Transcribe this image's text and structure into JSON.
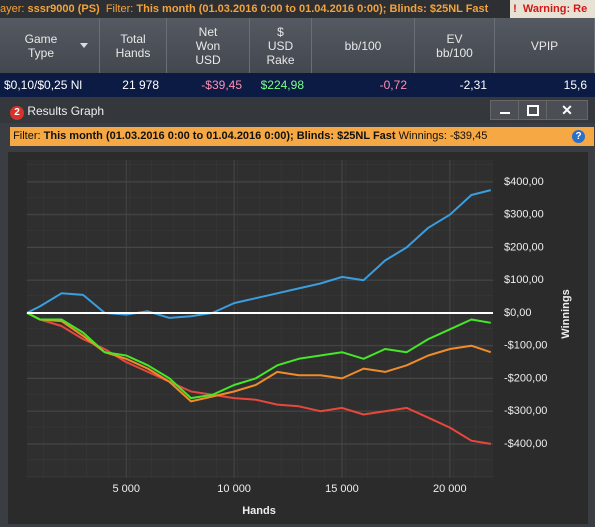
{
  "topbar": {
    "player_label": "ayer:",
    "player": "sssr9000 (PS)",
    "filter_label": "Filter:",
    "filter": "This month (01.03.2016 0:00 to 01.04.2016 0:00); Blinds: $25NL Fast",
    "warning_icon": "!",
    "warning": "Warning: Re"
  },
  "table": {
    "headers": [
      "Game Type",
      "Total Hands",
      "Net Won USD",
      "$ USD Rake",
      "bb/100",
      "EV bb/100",
      "VPIP"
    ],
    "rows": [
      [
        "$0,10/$0,25 Nl",
        "21 978",
        "-$39,45",
        "$224,98",
        "-0,72",
        "-2,31",
        "15,6"
      ]
    ]
  },
  "window": {
    "icon": "2",
    "title": "Results Graph",
    "filter_label": "Filter:",
    "filter": "This month (01.03.2016 0:00 to 01.04.2016 0:00); Blinds: $25NL Fast",
    "winnings_label": "Winnings:",
    "winnings": "-$39,45",
    "help": "?"
  },
  "chart_data": {
    "type": "line",
    "xlabel": "Hands",
    "ylabel": "Winnings",
    "x": [
      400,
      1000,
      2000,
      3000,
      4000,
      5000,
      6000,
      7000,
      8000,
      9000,
      10000,
      11000,
      12000,
      13000,
      14000,
      15000,
      16000,
      17000,
      18000,
      19000,
      20000,
      21000,
      21900
    ],
    "series": [
      {
        "color": "#3a9ee0",
        "values": [
          0,
          20,
          60,
          55,
          0,
          -5,
          5,
          -15,
          -10,
          0,
          30,
          45,
          60,
          75,
          90,
          110,
          100,
          160,
          200,
          260,
          300,
          360,
          375
        ]
      },
      {
        "color": "#e8473c",
        "values": [
          0,
          -20,
          -40,
          -80,
          -110,
          -150,
          -180,
          -210,
          -240,
          -250,
          -260,
          -265,
          -280,
          -285,
          -300,
          -290,
          -310,
          -300,
          -290,
          -320,
          -350,
          -390,
          -400
        ]
      },
      {
        "color": "#f08c2a",
        "values": [
          0,
          -20,
          -25,
          -70,
          -120,
          -140,
          -170,
          -210,
          -270,
          -255,
          -240,
          -220,
          -180,
          -190,
          -190,
          -200,
          -170,
          -180,
          -160,
          -130,
          -110,
          -100,
          -120
        ]
      },
      {
        "color": "#44e826",
        "values": [
          0,
          -20,
          -20,
          -60,
          -120,
          -130,
          -160,
          -200,
          -260,
          -250,
          -220,
          -200,
          -160,
          -140,
          -130,
          -120,
          -140,
          -110,
          -120,
          -80,
          -50,
          -20,
          -30
        ]
      }
    ],
    "xlim": [
      400,
      22000
    ],
    "ylim": [
      -504,
      467
    ],
    "xticks": [
      {
        "value": 5000,
        "label": "5 000"
      },
      {
        "value": 10000,
        "label": "10 000"
      },
      {
        "value": 15000,
        "label": "15 000"
      },
      {
        "value": 20000,
        "label": "20 000"
      }
    ],
    "yticks": [
      {
        "value": 400,
        "label": "$400,00"
      },
      {
        "value": 300,
        "label": "$300,00"
      },
      {
        "value": 200,
        "label": "$200,00"
      },
      {
        "value": 100,
        "label": "$100,00"
      },
      {
        "value": 0,
        "label": "$0,00"
      },
      {
        "value": -100,
        "label": "-$100,00"
      },
      {
        "value": -200,
        "label": "-$200,00"
      },
      {
        "value": -300,
        "label": "-$300,00"
      },
      {
        "value": -400,
        "label": "-$400,00"
      }
    ],
    "grid": true,
    "zero_line_color": "#ffffff"
  }
}
